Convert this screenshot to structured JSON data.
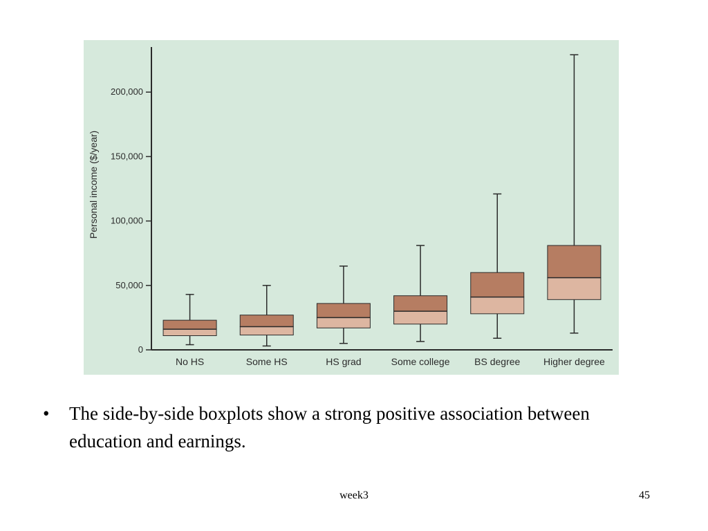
{
  "chart_data": {
    "type": "boxplot",
    "title": "",
    "xlabel": "",
    "ylabel": "Personal income ($/year)",
    "ylim": [
      0,
      235000
    ],
    "yticks": [
      0,
      50000,
      100000,
      150000,
      200000
    ],
    "ytick_labels": [
      "0",
      "50,000",
      "100,000",
      "150,000",
      "200,000"
    ],
    "categories": [
      "No HS",
      "Some HS",
      "HS grad",
      "Some college",
      "BS degree",
      "Higher degree"
    ],
    "boxes": [
      {
        "min": 4000,
        "q1": 11000,
        "median": 16000,
        "q3": 23000,
        "max": 43000
      },
      {
        "min": 3000,
        "q1": 11500,
        "median": 18000,
        "q3": 27000,
        "max": 50000
      },
      {
        "min": 5000,
        "q1": 17000,
        "median": 25000,
        "q3": 36000,
        "max": 65000
      },
      {
        "min": 6500,
        "q1": 20000,
        "median": 30000,
        "q3": 42000,
        "max": 81000
      },
      {
        "min": 9000,
        "q1": 28000,
        "median": 41000,
        "q3": 60000,
        "max": 121000
      },
      {
        "min": 13000,
        "q1": 39000,
        "median": 56000,
        "q3": 81000,
        "max": 229000
      }
    ],
    "grid": false,
    "legend": "none",
    "colors": {
      "background": "#d6e9dc",
      "upper_box": "#b67d62",
      "lower_box": "#ddb6a1",
      "stroke": "#2a2a2a"
    }
  },
  "slide": {
    "bullet_mark": "•",
    "bullet_text": "The side-by-side boxplots show a strong positive association between education and earnings.",
    "footer": "week3",
    "page_number": "45"
  }
}
